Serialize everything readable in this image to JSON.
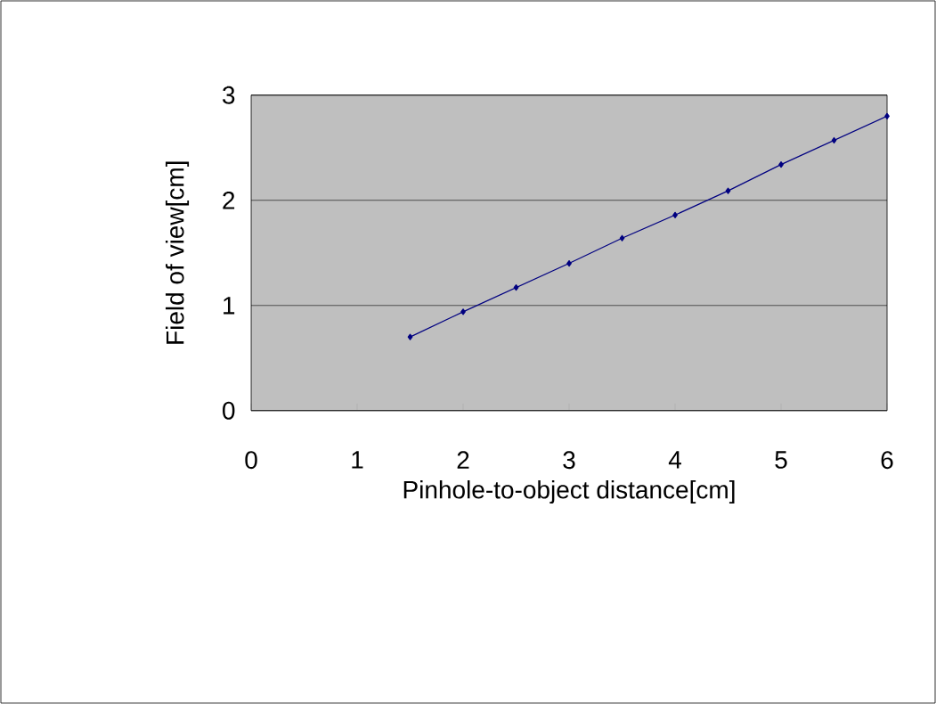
{
  "chart_data": {
    "type": "line",
    "xlabel": "Pinhole-to-object distance[cm]",
    "ylabel": "Field of view[cm]",
    "x": [
      1.5,
      2,
      2.5,
      3,
      3.5,
      4,
      4.5,
      5,
      5.5,
      6
    ],
    "series": [
      {
        "color": "#000080",
        "values": [
          0.7,
          0.94,
          1.17,
          1.4,
          1.64,
          1.86,
          2.09,
          2.34,
          2.57,
          2.8
        ]
      }
    ],
    "xlim": [
      0,
      6
    ],
    "ylim": [
      0,
      3
    ],
    "xticks": [
      0,
      1,
      2,
      3,
      4,
      5,
      6
    ],
    "yticks": [
      0,
      1,
      2,
      3
    ],
    "grid": "y",
    "marker": "diamond",
    "line_style": "solid"
  }
}
